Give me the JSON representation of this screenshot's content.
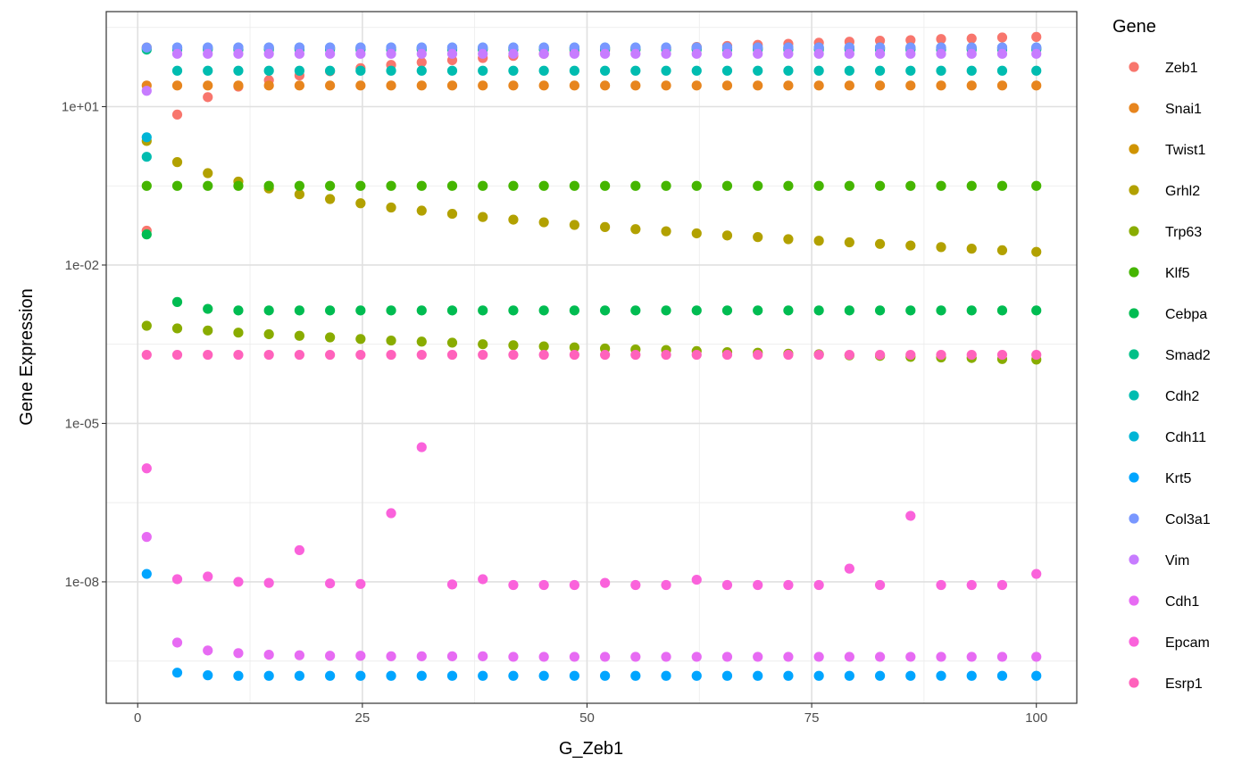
{
  "chart_data": {
    "type": "scatter",
    "xlabel": "G_Zeb1",
    "ylabel": "Gene Expression",
    "xlim": [
      -3.5,
      104.5
    ],
    "ylog10lim": [
      -10.3,
      2.8
    ],
    "x_ticks": [
      0,
      25,
      50,
      75,
      100
    ],
    "x_tick_labels": [
      "0",
      "25",
      "50",
      "75",
      "100"
    ],
    "y_ticks": [
      1e-08,
      1e-05,
      0.01,
      10
    ],
    "y_tick_labels": [
      "1e-08",
      "1e-05",
      "1e-02",
      "1e+01"
    ],
    "grid": true,
    "legend_title": "Gene",
    "legend_position": "right",
    "x": [
      1,
      4.4,
      7.8,
      11.2,
      14.6,
      18.0,
      21.4,
      24.8,
      28.2,
      31.6,
      35.0,
      38.4,
      41.8,
      45.2,
      48.6,
      52.0,
      55.4,
      58.8,
      62.2,
      65.6,
      69.0,
      72.4,
      75.8,
      79.2,
      82.6,
      86.0,
      89.4,
      92.8,
      96.2,
      100
    ],
    "series": [
      {
        "name": "Zeb1",
        "color": "#F8766D",
        "y_log10": [
          -1.35,
          0.85,
          1.18,
          1.38,
          1.5,
          1.59,
          1.67,
          1.73,
          1.79,
          1.84,
          1.88,
          1.92,
          1.96,
          2.0,
          2.03,
          2.06,
          2.08,
          2.11,
          2.13,
          2.15,
          2.17,
          2.19,
          2.21,
          2.23,
          2.25,
          2.26,
          2.28,
          2.29,
          2.31,
          2.32
        ]
      },
      {
        "name": "Snai1",
        "color": "#E7851E",
        "y_log10": [
          1.4,
          1.4,
          1.4,
          1.4,
          1.4,
          1.4,
          1.4,
          1.4,
          1.4,
          1.4,
          1.4,
          1.4,
          1.4,
          1.4,
          1.4,
          1.4,
          1.4,
          1.4,
          1.4,
          1.4,
          1.4,
          1.4,
          1.4,
          1.4,
          1.4,
          1.4,
          1.4,
          1.4,
          1.4,
          1.4
        ]
      },
      {
        "name": "Twist1",
        "color": "#D09400",
        "y_log10": [
          2.12,
          2.1,
          2.1,
          2.1,
          2.1,
          2.1,
          2.1,
          2.1,
          2.1,
          2.1,
          2.1,
          2.1,
          2.1,
          2.1,
          2.1,
          2.1,
          2.1,
          2.1,
          2.1,
          2.1,
          2.1,
          2.1,
          2.1,
          2.1,
          2.1,
          2.1,
          2.1,
          2.1,
          2.1,
          2.1
        ]
      },
      {
        "name": "Grhl2",
        "color": "#B2A100",
        "y_log10": [
          0.35,
          -0.05,
          -0.26,
          -0.42,
          -0.55,
          -0.66,
          -0.75,
          -0.83,
          -0.91,
          -0.97,
          -1.03,
          -1.09,
          -1.14,
          -1.19,
          -1.24,
          -1.28,
          -1.32,
          -1.36,
          -1.4,
          -1.44,
          -1.47,
          -1.51,
          -1.54,
          -1.57,
          -1.6,
          -1.63,
          -1.66,
          -1.69,
          -1.72,
          -1.75
        ]
      },
      {
        "name": "Trp63",
        "color": "#89AC00",
        "y_log10": [
          -3.15,
          -3.2,
          -3.24,
          -3.28,
          -3.31,
          -3.34,
          -3.37,
          -3.4,
          -3.43,
          -3.45,
          -3.47,
          -3.5,
          -3.52,
          -3.54,
          -3.56,
          -3.58,
          -3.6,
          -3.61,
          -3.63,
          -3.65,
          -3.66,
          -3.68,
          -3.69,
          -3.71,
          -3.72,
          -3.74,
          -3.75,
          -3.76,
          -3.78,
          -3.79
        ]
      },
      {
        "name": "Klf5",
        "color": "#45B500",
        "y_log10": [
          -0.5,
          -0.5,
          -0.5,
          -0.5,
          -0.5,
          -0.5,
          -0.5,
          -0.5,
          -0.5,
          -0.5,
          -0.5,
          -0.5,
          -0.5,
          -0.5,
          -0.5,
          -0.5,
          -0.5,
          -0.5,
          -0.5,
          -0.5,
          -0.5,
          -0.5,
          -0.5,
          -0.5,
          -0.5,
          -0.5,
          -0.5,
          -0.5,
          -0.5,
          -0.5
        ]
      },
      {
        "name": "Cebpa",
        "color": "#00BC51",
        "y_log10": [
          -1.42,
          -2.7,
          -2.83,
          -2.86,
          -2.86,
          -2.86,
          -2.86,
          -2.86,
          -2.86,
          -2.86,
          -2.86,
          -2.86,
          -2.86,
          -2.86,
          -2.86,
          -2.86,
          -2.86,
          -2.86,
          -2.86,
          -2.86,
          -2.86,
          -2.86,
          -2.86,
          -2.86,
          -2.86,
          -2.86,
          -2.86,
          -2.86,
          -2.86,
          -2.86
        ]
      },
      {
        "name": "Smad2",
        "color": "#00C087",
        "y_log10": [
          2.08,
          2.08,
          2.08,
          2.08,
          2.08,
          2.08,
          2.08,
          2.08,
          2.08,
          2.08,
          2.08,
          2.08,
          2.08,
          2.08,
          2.08,
          2.08,
          2.08,
          2.08,
          2.08,
          2.08,
          2.08,
          2.08,
          2.08,
          2.08,
          2.08,
          2.08,
          2.08,
          2.08,
          2.08,
          2.08
        ]
      },
      {
        "name": "Cdh2",
        "color": "#00BCB0",
        "y_log10": [
          0.05,
          1.68,
          1.68,
          1.68,
          1.68,
          1.68,
          1.68,
          1.68,
          1.68,
          1.68,
          1.68,
          1.68,
          1.68,
          1.68,
          1.68,
          1.68,
          1.68,
          1.68,
          1.68,
          1.68,
          1.68,
          1.68,
          1.68,
          1.68,
          1.68,
          1.68,
          1.68,
          1.68,
          1.68,
          1.68
        ]
      },
      {
        "name": "Cdh11",
        "color": "#00B5D6",
        "y_log10": [
          0.42,
          2.12,
          2.12,
          2.12,
          2.12,
          2.12,
          2.12,
          2.12,
          2.12,
          2.12,
          2.12,
          2.12,
          2.12,
          2.12,
          2.12,
          2.12,
          2.12,
          2.12,
          2.12,
          2.12,
          2.12,
          2.12,
          2.12,
          2.12,
          2.12,
          2.12,
          2.12,
          2.12,
          2.12,
          2.12
        ]
      },
      {
        "name": "Krt5",
        "color": "#00A5FF",
        "y_log10": [
          -7.85,
          -9.72,
          -9.77,
          -9.78,
          -9.78,
          -9.78,
          -9.78,
          -9.78,
          -9.78,
          -9.78,
          -9.78,
          -9.78,
          -9.78,
          -9.78,
          -9.78,
          -9.78,
          -9.78,
          -9.78,
          -9.78,
          -9.78,
          -9.78,
          -9.78,
          -9.78,
          -9.78,
          -9.78,
          -9.78,
          -9.78,
          -9.78,
          -9.78,
          -9.78
        ]
      },
      {
        "name": "Col3a1",
        "color": "#7997FF",
        "y_log10": [
          2.12,
          2.12,
          2.12,
          2.12,
          2.12,
          2.12,
          2.12,
          2.12,
          2.12,
          2.12,
          2.12,
          2.12,
          2.12,
          2.12,
          2.12,
          2.12,
          2.12,
          2.12,
          2.12,
          2.12,
          2.12,
          2.12,
          2.12,
          2.12,
          2.12,
          2.12,
          2.12,
          2.12,
          2.12,
          2.12
        ]
      },
      {
        "name": "Vim",
        "color": "#C77CFF",
        "y_log10": [
          1.3,
          2.0,
          2.0,
          2.0,
          2.0,
          2.0,
          2.0,
          2.0,
          2.0,
          2.0,
          2.0,
          2.0,
          2.0,
          2.0,
          2.0,
          2.0,
          2.0,
          2.0,
          2.0,
          2.0,
          2.0,
          2.0,
          2.0,
          2.0,
          2.0,
          2.0,
          2.0,
          2.0,
          2.0,
          2.0
        ]
      },
      {
        "name": "Cdh1",
        "color": "#E76BF3",
        "y_log10": [
          -7.15,
          -9.15,
          -9.3,
          -9.35,
          -9.38,
          -9.39,
          -9.4,
          -9.4,
          -9.41,
          -9.41,
          -9.41,
          -9.41,
          -9.42,
          -9.42,
          -9.42,
          -9.42,
          -9.42,
          -9.42,
          -9.42,
          -9.42,
          -9.42,
          -9.42,
          -9.42,
          -9.42,
          -9.42,
          -9.42,
          -9.42,
          -9.42,
          -9.42,
          -9.42
        ]
      },
      {
        "name": "Epcam",
        "color": "#FA62DB",
        "y_log10": [
          -5.85,
          -7.95,
          -7.9,
          -8.0,
          -8.02,
          -7.4,
          -8.03,
          -8.04,
          -6.7,
          -5.45,
          -8.05,
          -7.95,
          -8.06,
          -8.06,
          -8.06,
          -8.02,
          -8.06,
          -8.06,
          -7.96,
          -8.06,
          -8.06,
          -8.06,
          -8.06,
          -7.75,
          -8.06,
          -6.75,
          -8.06,
          -8.06,
          -8.06,
          -7.85
        ]
      },
      {
        "name": "Esrp1",
        "color": "#FF62BC",
        "y_log10": [
          -3.7,
          -3.7,
          -3.7,
          -3.7,
          -3.7,
          -3.7,
          -3.7,
          -3.7,
          -3.7,
          -3.7,
          -3.7,
          -3.7,
          -3.7,
          -3.7,
          -3.7,
          -3.7,
          -3.7,
          -3.7,
          -3.7,
          -3.7,
          -3.7,
          -3.7,
          -3.7,
          -3.7,
          -3.7,
          -3.7,
          -3.7,
          -3.7,
          -3.7,
          -3.7
        ]
      }
    ],
    "legend_order": [
      "Zeb1",
      "Snai1",
      "Twist1",
      "Grhl2",
      "Trp63",
      "Klf5",
      "Cebpa",
      "Smad2",
      "Cdh2",
      "Cdh11",
      "Krt5",
      "Col3a1",
      "Vim",
      "Cdh1",
      "Epcam",
      "Esrp1"
    ],
    "draw_order": [
      "Zeb1",
      "Twist1",
      "Snai1",
      "Grhl2",
      "Trp63",
      "Klf5",
      "Cebpa",
      "Smad2",
      "Cdh2",
      "Cdh11",
      "Krt5",
      "Col3a1",
      "Vim",
      "Cdh1",
      "Epcam",
      "Esrp1"
    ]
  }
}
